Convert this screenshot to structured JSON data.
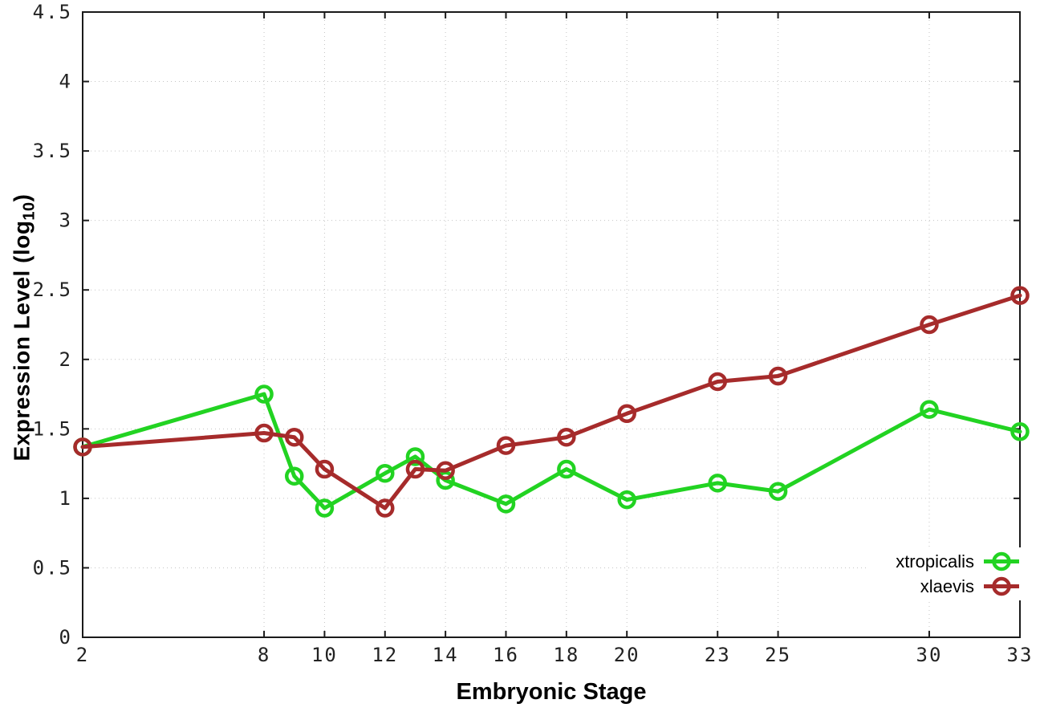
{
  "chart_data": {
    "type": "line",
    "title": "",
    "xlabel": "Embryonic Stage",
    "ylabel_main": "Expression Level (log",
    "ylabel_sub": "10",
    "ylabel_close": ")",
    "xlim": [
      2,
      33
    ],
    "ylim": [
      0,
      4.5
    ],
    "grid": true,
    "legend_position": "bottom-right",
    "marker": "open-circle",
    "x_ticks": [
      2,
      8,
      10,
      12,
      14,
      16,
      18,
      20,
      23,
      25,
      30,
      33
    ],
    "x_tick_labels": [
      "2",
      "8",
      "10",
      "12",
      "14",
      "16",
      "18",
      "20",
      "23",
      "25",
      "30",
      "33"
    ],
    "y_ticks": [
      0,
      0.5,
      1,
      1.5,
      2,
      2.5,
      3,
      3.5,
      4,
      4.5
    ],
    "y_tick_labels": [
      "0",
      "0.5",
      "1",
      "1.5",
      "2",
      "2.5",
      "3",
      "3.5",
      "4",
      "4.5"
    ],
    "x": [
      2,
      8,
      9,
      10,
      12,
      13,
      14,
      16,
      18,
      20,
      23,
      25,
      30,
      33
    ],
    "series": [
      {
        "name": "xtropicalis",
        "color": "#22d322",
        "values": [
          1.37,
          1.75,
          1.16,
          0.93,
          1.18,
          1.3,
          1.13,
          0.96,
          1.21,
          0.99,
          1.11,
          1.05,
          1.64,
          1.48
        ]
      },
      {
        "name": "xlaevis",
        "color": "#a62b2b",
        "values": [
          1.37,
          1.47,
          1.44,
          1.21,
          0.93,
          1.21,
          1.2,
          1.38,
          1.44,
          1.61,
          1.84,
          1.88,
          2.25,
          2.46
        ]
      }
    ]
  },
  "colors": {
    "background": "#ffffff",
    "border": "#1a1a1a",
    "grid": "#c4c4c4",
    "tick_text": "#222222"
  }
}
